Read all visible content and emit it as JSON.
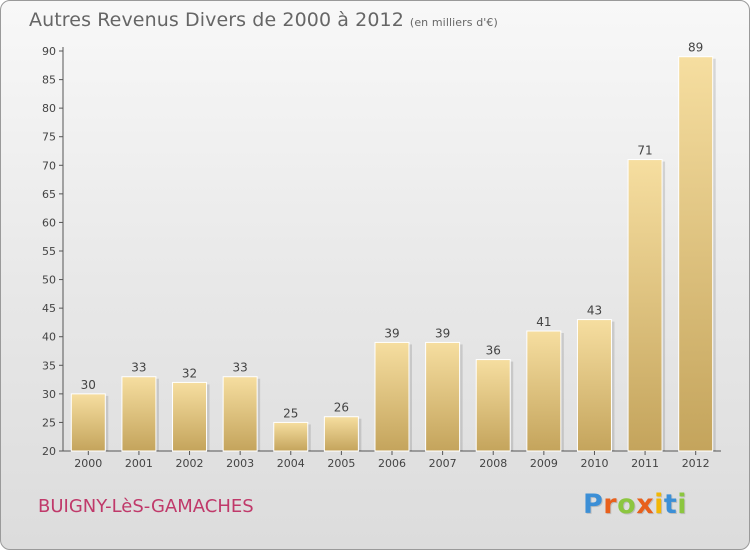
{
  "title": {
    "main": "Autres Revenus Divers de 2000 à 2012",
    "unit": "(en milliers d'€)"
  },
  "location": "BUIGNY-LèS-GAMACHES",
  "brand": {
    "text": "Proxiti",
    "letter_colors": [
      "#3c8fd6",
      "#e8601c",
      "#8cc63f",
      "#e8601c",
      "#f2b705",
      "#3c8fd6",
      "#8cc63f"
    ]
  },
  "colors": {
    "bar_light": "#f6dea0",
    "bar_dark": "#c4a45c",
    "title": "#666666",
    "location": "#c0396a"
  },
  "chart_data": {
    "type": "bar",
    "categories": [
      "2000",
      "2001",
      "2002",
      "2003",
      "2004",
      "2005",
      "2006",
      "2007",
      "2008",
      "2009",
      "2010",
      "2011",
      "2012"
    ],
    "values": [
      30,
      33,
      32,
      33,
      25,
      26,
      39,
      39,
      36,
      41,
      43,
      71,
      89
    ],
    "data_labels": [
      "30",
      "33",
      "32",
      "33",
      "25",
      "26",
      "39",
      "39",
      "36",
      "41",
      "43",
      "71",
      "89"
    ],
    "ylim": [
      20,
      90
    ],
    "yticks": [
      20,
      25,
      30,
      35,
      40,
      45,
      50,
      55,
      60,
      65,
      70,
      75,
      80,
      85,
      90
    ],
    "grid": false,
    "xlabel": "",
    "ylabel": ""
  }
}
